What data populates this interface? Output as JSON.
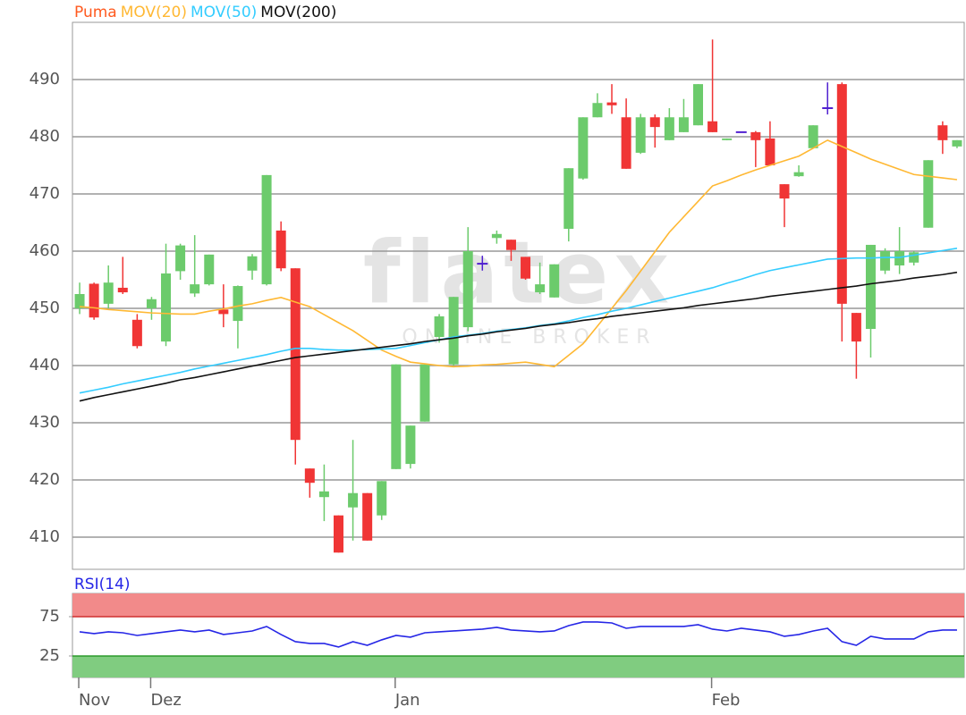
{
  "chart_data": [
    {
      "type": "candlestick",
      "series": [
        {
          "name": "Puma",
          "color": "#ff5a1f",
          "up_color": "#6ccb6c",
          "down_color": "#f03535",
          "flat_color": "#5020d0",
          "open": [
            450,
            454.3,
            450.8,
            453.6,
            448,
            450,
            444.2,
            456.5,
            452.6,
            454.2,
            449.8,
            447.8,
            456.6,
            454.2,
            463.6,
            457,
            422,
            417,
            413.8,
            415.2,
            417.7,
            413.8,
            421.9,
            422.8,
            430.2,
            445,
            440.2,
            446.7,
            457.8,
            462.3,
            462,
            459,
            452.8,
            451.9,
            463.9,
            472.7,
            483.4,
            486,
            483.4,
            477.2,
            483.4,
            479.4,
            480.8,
            482,
            482.7,
            479.4,
            480.8,
            480.8,
            479.7,
            471.7,
            473.1,
            478,
            485,
            489.2,
            449.2,
            446.4,
            456.6,
            457.5,
            458,
            464.1,
            482,
            478.3
          ],
          "high": [
            454.5,
            454.5,
            457.5,
            459,
            449,
            452,
            461.3,
            461.3,
            462.8,
            459.4,
            454.2,
            454,
            459.5,
            473.3,
            465.2,
            457,
            422,
            422.7,
            413.8,
            427,
            417.7,
            419.8,
            440.2,
            429.5,
            440.2,
            449,
            452,
            464.2,
            459.2,
            463.6,
            462,
            459,
            458,
            457.7,
            474.5,
            483.4,
            487.6,
            489.2,
            486.7,
            484,
            483.9,
            485,
            486.6,
            489.2,
            497,
            479.7,
            480.8,
            481,
            482.7,
            471.7,
            475,
            482,
            489.5,
            489.5,
            449.2,
            461.1,
            460.5,
            464.2,
            460,
            475.9,
            482.7,
            479.4
          ],
          "low": [
            449,
            448,
            450,
            452.5,
            443,
            448,
            443.4,
            455,
            452,
            454,
            446.7,
            443,
            455,
            454,
            456.5,
            422.7,
            416.9,
            412.8,
            407.3,
            409.4,
            409.4,
            413,
            421.9,
            422,
            430.2,
            444,
            440,
            446,
            456.6,
            461.3,
            458.3,
            455,
            452.5,
            451.9,
            461.7,
            472.5,
            483.4,
            484,
            474.4,
            477,
            478.1,
            479.4,
            480.8,
            482,
            480.8,
            479.4,
            480.8,
            474.7,
            475,
            464.2,
            473,
            478,
            483.9,
            444.2,
            437.7,
            441.4,
            456,
            456,
            457.5,
            464.1,
            477,
            478
          ],
          "close": [
            452.5,
            448.4,
            454.5,
            452.8,
            443.4,
            451.6,
            456.1,
            461,
            454.2,
            459.4,
            449,
            453.9,
            459.1,
            473.3,
            457,
            427,
            419.5,
            418,
            407.3,
            417.7,
            409.4,
            419.8,
            440.2,
            429.5,
            440.2,
            448.6,
            452,
            460,
            457.8,
            463,
            460.2,
            455.2,
            454.2,
            457.7,
            474.5,
            483.4,
            485.9,
            485.5,
            474.4,
            483.4,
            481.7,
            483.4,
            483.4,
            489.2,
            480.8,
            479.7,
            480.8,
            479.4,
            475,
            469.2,
            473.8,
            482,
            485,
            450.8,
            444.2,
            461.1,
            460,
            460,
            459.8,
            475.9,
            479.4,
            479.4
          ]
        }
      ],
      "lines": [
        {
          "name": "MOV(20)",
          "color": "#ffb833",
          "values": [
            450.3,
            450.1,
            449.8,
            449.6,
            449.4,
            449.2,
            449.1,
            449.0,
            449.0,
            449.5,
            449.9,
            450.4,
            450.8,
            451.4,
            451.9,
            451.1,
            450.3,
            448.9,
            447.5,
            446.1,
            444.4,
            442.7,
            441.6,
            440.6,
            440.3,
            440.0,
            439.8,
            439.9,
            440.1,
            440.2,
            440.4,
            440.6,
            440.2,
            439.8,
            441.8,
            443.8,
            446.9,
            450.0,
            453.1,
            456.5,
            459.9,
            463.3,
            466.0,
            468.7,
            471.4,
            472.3,
            473.3,
            474.2,
            475.0,
            475.8,
            476.6,
            478.0,
            479.4,
            478.3,
            477.2,
            476.1,
            475.2,
            474.3,
            473.4,
            473.1,
            472.8,
            472.5
          ]
        },
        {
          "name": "MOV(50)",
          "color": "#33ccff",
          "values": [
            435.2,
            435.7,
            436.2,
            436.8,
            437.3,
            437.8,
            438.3,
            438.8,
            439.4,
            439.9,
            440.4,
            440.9,
            441.4,
            441.9,
            442.5,
            443.0,
            443.0,
            442.8,
            442.7,
            442.7,
            442.8,
            442.9,
            443.0,
            443.5,
            444.0,
            444.5,
            445.0,
            445.3,
            445.6,
            446.0,
            446.3,
            446.6,
            447.0,
            447.3,
            447.8,
            448.4,
            448.9,
            449.5,
            450.0,
            450.6,
            451.2,
            451.8,
            452.4,
            453.0,
            453.6,
            454.4,
            455.1,
            455.9,
            456.6,
            457.1,
            457.6,
            458.1,
            458.6,
            458.7,
            458.8,
            458.8,
            458.9,
            458.9,
            459.3,
            459.7,
            460.1,
            460.5
          ]
        },
        {
          "name": "MOV(200)",
          "color": "#111111",
          "values": [
            433.8,
            434.4,
            434.9,
            435.4,
            435.9,
            436.4,
            436.9,
            437.5,
            437.9,
            438.4,
            438.9,
            439.4,
            439.9,
            440.4,
            440.9,
            441.4,
            441.7,
            442.0,
            442.3,
            442.6,
            442.9,
            443.2,
            443.5,
            443.8,
            444.2,
            444.5,
            444.8,
            445.2,
            445.5,
            445.9,
            446.2,
            446.5,
            446.9,
            447.2,
            447.5,
            447.9,
            448.2,
            448.6,
            448.9,
            449.2,
            449.5,
            449.8,
            450.1,
            450.5,
            450.8,
            451.1,
            451.4,
            451.7,
            452.1,
            452.4,
            452.7,
            453.0,
            453.3,
            453.6,
            453.9,
            454.3,
            454.6,
            454.9,
            455.3,
            455.6,
            455.9,
            456.3
          ]
        }
      ],
      "ylim": [
        404.375,
        500
      ],
      "yticks": [
        410,
        420,
        430,
        440,
        450,
        460,
        470,
        480,
        490
      ],
      "grid": true,
      "watermark": {
        "logo": "flatex",
        "tagline": "ONLINE BROKER"
      }
    },
    {
      "type": "line",
      "categories": [
        "Nov",
        null,
        null,
        null,
        null,
        "Dez",
        null,
        null,
        null,
        null,
        null,
        null,
        null,
        null,
        null,
        null,
        null,
        null,
        null,
        null,
        null,
        null,
        "Jan",
        null,
        null,
        null,
        null,
        null,
        null,
        null,
        null,
        null,
        null,
        null,
        null,
        null,
        null,
        null,
        null,
        null,
        null,
        null,
        null,
        null,
        "Feb",
        null,
        null,
        null,
        null,
        null,
        null,
        null,
        null,
        null,
        null,
        null,
        null,
        null,
        null,
        null,
        null,
        null
      ],
      "series": [
        {
          "name": "RSI(14)",
          "color": "#2626e6",
          "values": [
            55.7,
            53.4,
            55.7,
            54.5,
            51.1,
            53.4,
            55.7,
            58.0,
            55.7,
            58.0,
            52.3,
            54.5,
            56.8,
            62.5,
            52.3,
            43.2,
            40.9,
            40.9,
            36.4,
            43.2,
            38.6,
            45.5,
            51.1,
            48.9,
            54.5,
            55.7,
            56.8,
            58.0,
            59.1,
            61.4,
            58.0,
            56.8,
            55.7,
            56.8,
            63.6,
            68.2,
            68.2,
            67.0,
            60.2,
            62.5,
            62.5,
            62.5,
            62.5,
            64.8,
            59.1,
            56.8,
            60.2,
            58.0,
            55.7,
            50.0,
            52.3,
            56.8,
            60.2,
            43.2,
            38.6,
            50.0,
            46.6,
            46.6,
            46.6,
            55.7,
            58.0,
            58.0
          ]
        }
      ],
      "ylim": [
        -2.3,
        104.5
      ],
      "yticks": [
        25,
        75
      ],
      "zone_colors": [
        "#80cc80",
        "#f28a8a"
      ]
    }
  ]
}
